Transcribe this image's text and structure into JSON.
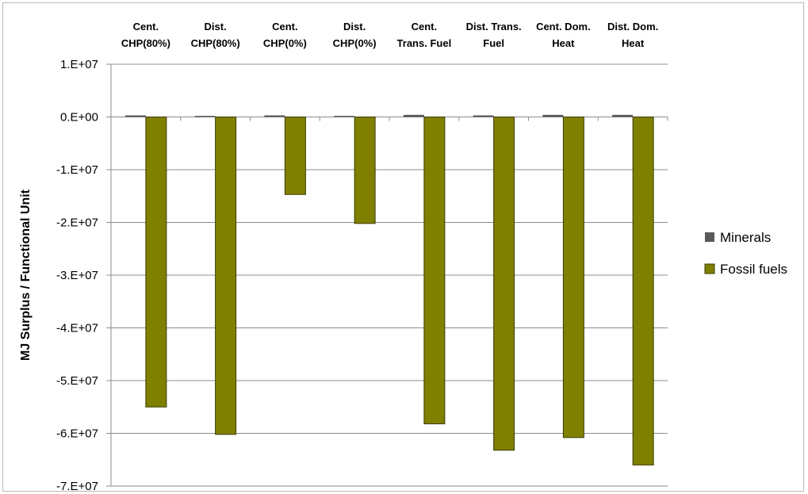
{
  "chart_data": {
    "type": "bar",
    "categories": [
      [
        "Cent.",
        "CHP(80%)"
      ],
      [
        "Dist.",
        "CHP(80%)"
      ],
      [
        "Cent.",
        "CHP(0%)"
      ],
      [
        "Dist.",
        "CHP(0%)"
      ],
      [
        "Cent.",
        "Trans. Fuel"
      ],
      [
        "Dist. Trans.",
        "Fuel"
      ],
      [
        "Cent. Dom.",
        "Heat"
      ],
      [
        "Dist. Dom.",
        "Heat"
      ]
    ],
    "series": [
      {
        "name": "Minerals",
        "color": "#595959",
        "values": [
          300000,
          200000,
          300000,
          200000,
          400000,
          300000,
          400000,
          400000
        ]
      },
      {
        "name": "Fossil fuels",
        "color": "#7f7f00",
        "values": [
          -55000000,
          -60200000,
          -14700000,
          -20200000,
          -58200000,
          -63200000,
          -60800000,
          -66000000
        ]
      }
    ],
    "ylabel": "MJ Surplus / Functional Unit",
    "ylim": [
      -70000000,
      10000000
    ],
    "yticks": [
      10000000,
      0,
      -10000000,
      -20000000,
      -30000000,
      -40000000,
      -50000000,
      -60000000,
      -70000000
    ],
    "ytick_labels": [
      "1.E+07",
      "0.E+00",
      "-1.E+07",
      "-2.E+07",
      "-3.E+07",
      "-4.E+07",
      "-5.E+07",
      "-6.E+07",
      "-7.E+07"
    ],
    "grid": true,
    "legend_position": "right"
  }
}
